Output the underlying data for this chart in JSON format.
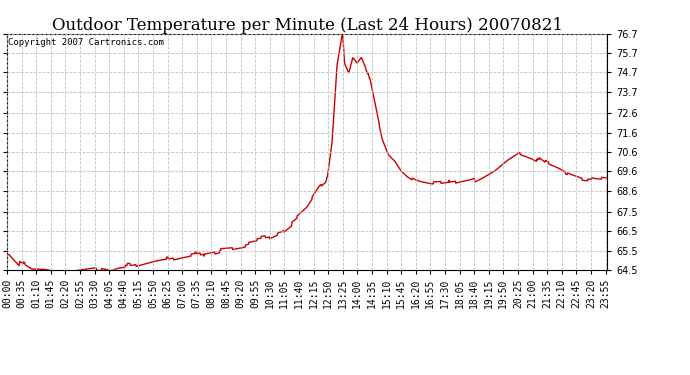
{
  "title": "Outdoor Temperature per Minute (Last 24 Hours) 20070821",
  "copyright_text": "Copyright 2007 Cartronics.com",
  "line_color": "#cc0000",
  "background_color": "#ffffff",
  "grid_color": "#bbbbbb",
  "ylim": [
    64.5,
    76.7
  ],
  "yticks": [
    64.5,
    65.5,
    66.5,
    67.5,
    68.6,
    69.6,
    70.6,
    71.6,
    72.6,
    73.7,
    74.7,
    75.7,
    76.7
  ],
  "title_fontsize": 12,
  "copyright_fontsize": 6.5,
  "tick_fontsize": 7,
  "line_width": 1.0,
  "tick_step_minutes": 35,
  "n_minutes": 1440
}
